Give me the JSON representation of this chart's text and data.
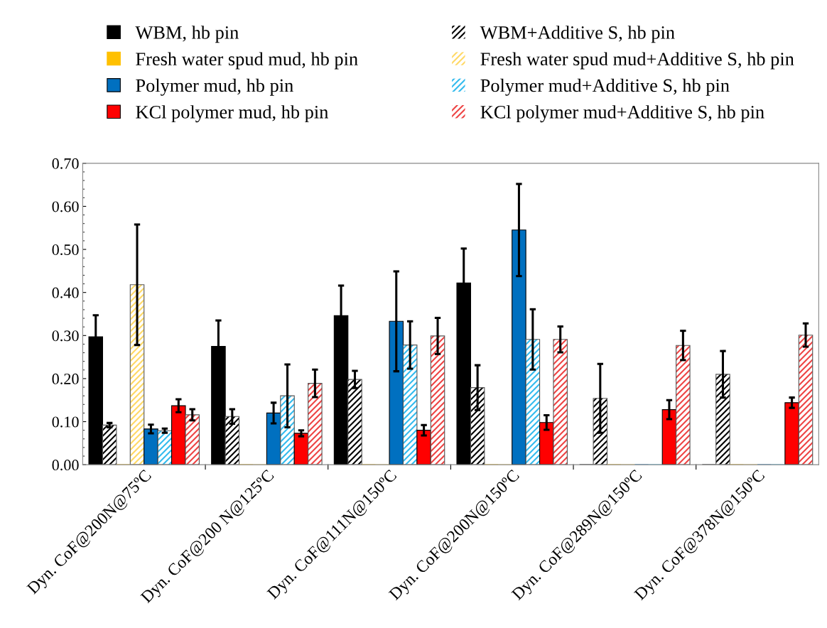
{
  "chart_data": {
    "type": "bar",
    "categories": [
      "Dyn. CoF@200N@75ºC",
      "Dyn. CoF@200 N@125ºC",
      "Dyn. CoF@111N@150ºC",
      "Dyn. CoF@200N@150ºC",
      "Dyn. CoF@289N@150ºC",
      "Dyn. CoF@378N@150ºC"
    ],
    "series": [
      {
        "name": "WBM, hb pin",
        "color": "#000000",
        "values": [
          0.297,
          0.275,
          0.346,
          0.422,
          0,
          0
        ],
        "errors": [
          0.05,
          0.06,
          0.07,
          0.08,
          null,
          null
        ]
      },
      {
        "name": "WBM+Additive S, hb pin",
        "color": "#000000",
        "values": [
          0.092,
          0.112,
          0.198,
          0.179,
          0.154,
          0.21
        ],
        "errors": [
          0.005,
          0.017,
          0.02,
          0.052,
          0.08,
          0.054
        ]
      },
      {
        "name": "Fresh water spud mud, hb pin",
        "color": "#ffc000",
        "values": [
          0,
          0,
          0,
          0,
          0,
          0
        ],
        "errors": [
          null,
          null,
          null,
          null,
          null,
          null
        ]
      },
      {
        "name": "Fresh water spud mud+Additive S, hb pin",
        "color": "#ffd966",
        "values": [
          0.418,
          0,
          0,
          0,
          0,
          0
        ],
        "errors": [
          0.14,
          null,
          null,
          null,
          null,
          null
        ]
      },
      {
        "name": "Polymer mud, hb pin",
        "color": "#0070c0",
        "values": [
          0.083,
          0.12,
          0.333,
          0.545,
          0,
          0
        ],
        "errors": [
          0.01,
          0.024,
          0.116,
          0.107,
          null,
          null
        ]
      },
      {
        "name": "Polymer mud+Additive S, hb pin",
        "color": "#33bbee",
        "values": [
          0.079,
          0.16,
          0.278,
          0.291,
          0,
          0
        ],
        "errors": [
          0.005,
          0.073,
          0.055,
          0.07,
          null,
          null
        ]
      },
      {
        "name": "KCl polymer mud, hb pin",
        "color": "#ff0000",
        "values": [
          0.137,
          0.073,
          0.08,
          0.098,
          0.128,
          0.144
        ],
        "errors": [
          0.015,
          0.007,
          0.012,
          0.017,
          0.022,
          0.012
        ]
      },
      {
        "name": "KCl polymer mud+Additive S, hb pin",
        "color": "#ee4444",
        "values": [
          0.116,
          0.189,
          0.299,
          0.291,
          0.277,
          0.301
        ],
        "errors": [
          0.013,
          0.032,
          0.042,
          0.03,
          0.034,
          0.027
        ]
      }
    ],
    "ylim": [
      0,
      0.7
    ],
    "yticks": [
      {
        "value": 0,
        "label": "0.00"
      },
      {
        "value": 0.1,
        "label": "0.10"
      },
      {
        "value": 0.2,
        "label": "0.20"
      },
      {
        "value": 0.3,
        "label": "0.30"
      },
      {
        "value": 0.4,
        "label": "0.40"
      },
      {
        "value": 0.5,
        "label": "0.50"
      },
      {
        "value": 0.6,
        "label": "0.60"
      },
      {
        "value": 0.7,
        "label": "0.70"
      }
    ],
    "grid": false,
    "legend": "top"
  }
}
